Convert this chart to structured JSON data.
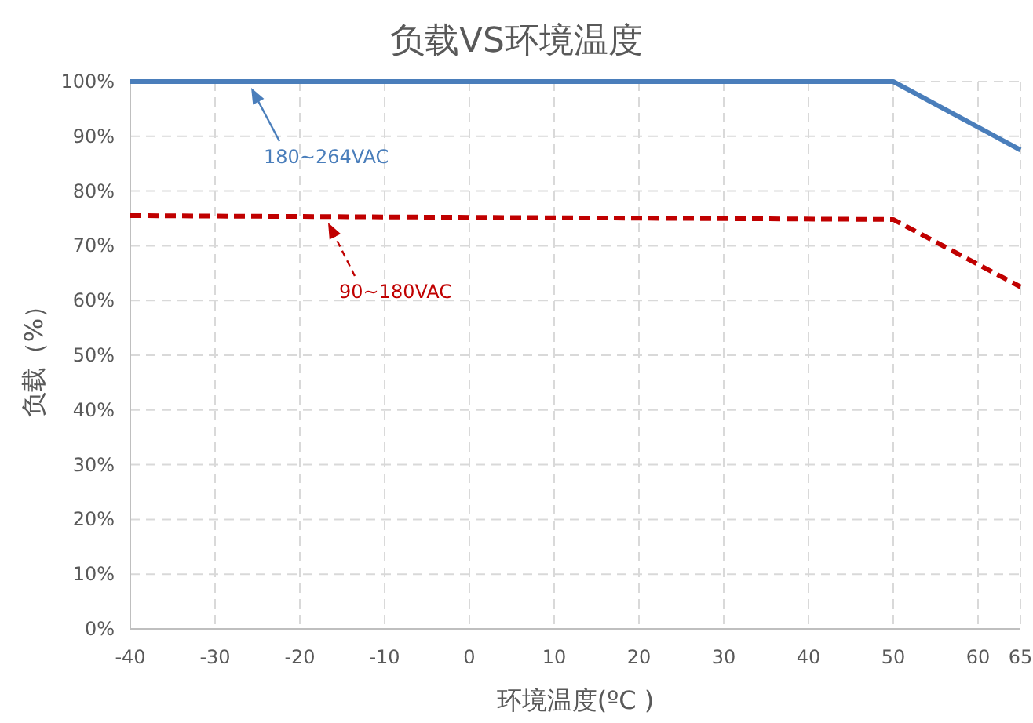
{
  "chart_data": {
    "type": "line",
    "title": "负载VS环境温度",
    "xlabel": "环境温度(ºC )",
    "ylabel": "负载（%）",
    "xlim": [
      -40,
      65
    ],
    "xticks": [
      -40,
      -30,
      -20,
      -10,
      0,
      10,
      20,
      30,
      40,
      50,
      60,
      65
    ],
    "ylim": [
      0,
      100
    ],
    "yticks": [
      {
        "value": 0,
        "label": "0%"
      },
      {
        "value": 10,
        "label": "10%"
      },
      {
        "value": 20,
        "label": "20%"
      },
      {
        "value": 30,
        "label": "30%"
      },
      {
        "value": 40,
        "label": "40%"
      },
      {
        "value": 50,
        "label": "50%"
      },
      {
        "value": 60,
        "label": "60%"
      },
      {
        "value": 70,
        "label": "70%"
      },
      {
        "value": 80,
        "label": "80%"
      },
      {
        "value": 90,
        "label": "90%"
      },
      {
        "value": 100,
        "label": "100%"
      }
    ],
    "grid": true,
    "marker": "none",
    "series": [
      {
        "color": "#4a7ebb",
        "line_style": "solid",
        "x": [
          -40,
          50,
          65
        ],
        "values": [
          100,
          100,
          87.5
        ]
      },
      {
        "color": "#c00000",
        "line_style": "dashed",
        "x": [
          -40,
          50,
          65
        ],
        "values": [
          75.5,
          74.8,
          62.5
        ]
      }
    ],
    "annotations": [
      "180~264VAC",
      "90~180VAC"
    ]
  }
}
